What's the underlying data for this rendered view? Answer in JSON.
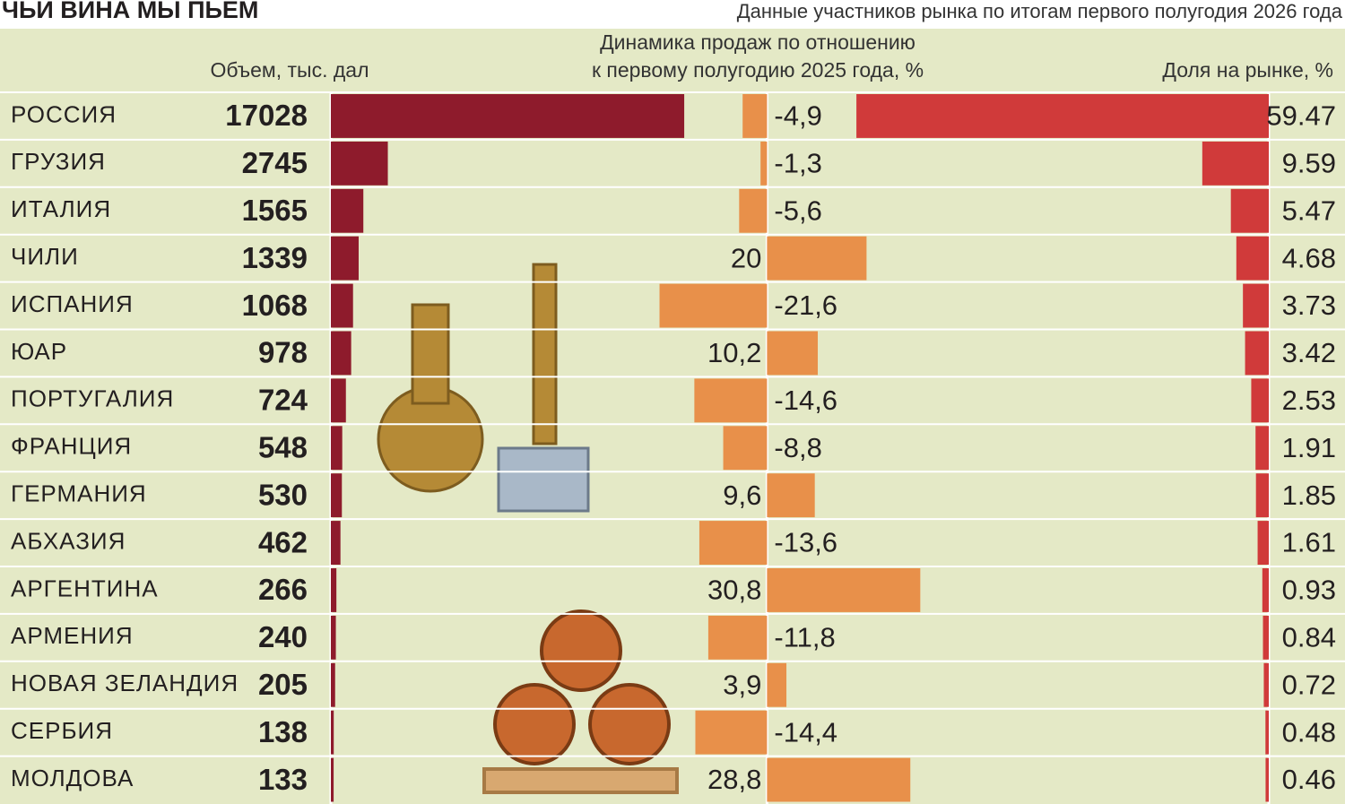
{
  "title": "ЧЬИ ВИНА МЫ ПЬЕМ",
  "subtitle": "Данные участников рынка по итогам первого полугодия 2026 года",
  "chart_data": [
    {
      "type": "bar",
      "title": "Объем, тыс. дал",
      "categories": [
        "РОССИЯ",
        "ГРУЗИЯ",
        "ИТАЛИЯ",
        "ЧИЛИ",
        "ИСПАНИЯ",
        "ЮАР",
        "ПОРТУГАЛИЯ",
        "ФРАНЦИЯ",
        "ГЕРМАНИЯ",
        "АБХАЗИЯ",
        "АРГЕНТИНА",
        "АРМЕНИЯ",
        "НОВАЯ ЗЕЛАНДИЯ",
        "СЕРБИЯ",
        "МОЛДОВА"
      ],
      "values": [
        17028,
        2745,
        1565,
        1339,
        1068,
        978,
        724,
        548,
        530,
        462,
        266,
        240,
        205,
        138,
        133
      ],
      "color": "#8e1b2c",
      "xlim": [
        0,
        21000
      ]
    },
    {
      "type": "bar",
      "title": [
        "Динамика продаж по отношению",
        "к первому полугодию 2025 года, %"
      ],
      "values": [
        -4.9,
        -1.3,
        -5.6,
        20,
        -21.6,
        10.2,
        -14.6,
        -8.8,
        9.6,
        -13.6,
        30.8,
        -11.8,
        3.9,
        -14.4,
        28.8
      ],
      "value_labels": [
        "-4,9",
        "-1,3",
        "-5,6",
        "20",
        "-21,6",
        "10,2",
        "-14,6",
        "-8,8",
        "9,6",
        "-13,6",
        "30,8",
        "-11,8",
        "3,9",
        "-14,4",
        "28,8"
      ],
      "color": "#e8904a",
      "xlim": [
        -28,
        32
      ]
    },
    {
      "type": "bar",
      "title": "Доля на рынке, %",
      "values": [
        59.47,
        9.59,
        5.47,
        4.68,
        3.73,
        3.42,
        2.53,
        1.91,
        1.85,
        1.61,
        0.93,
        0.84,
        0.72,
        0.48,
        0.46
      ],
      "color": "#d03a3a",
      "xlim": [
        0,
        60
      ],
      "xreverse": true
    }
  ]
}
